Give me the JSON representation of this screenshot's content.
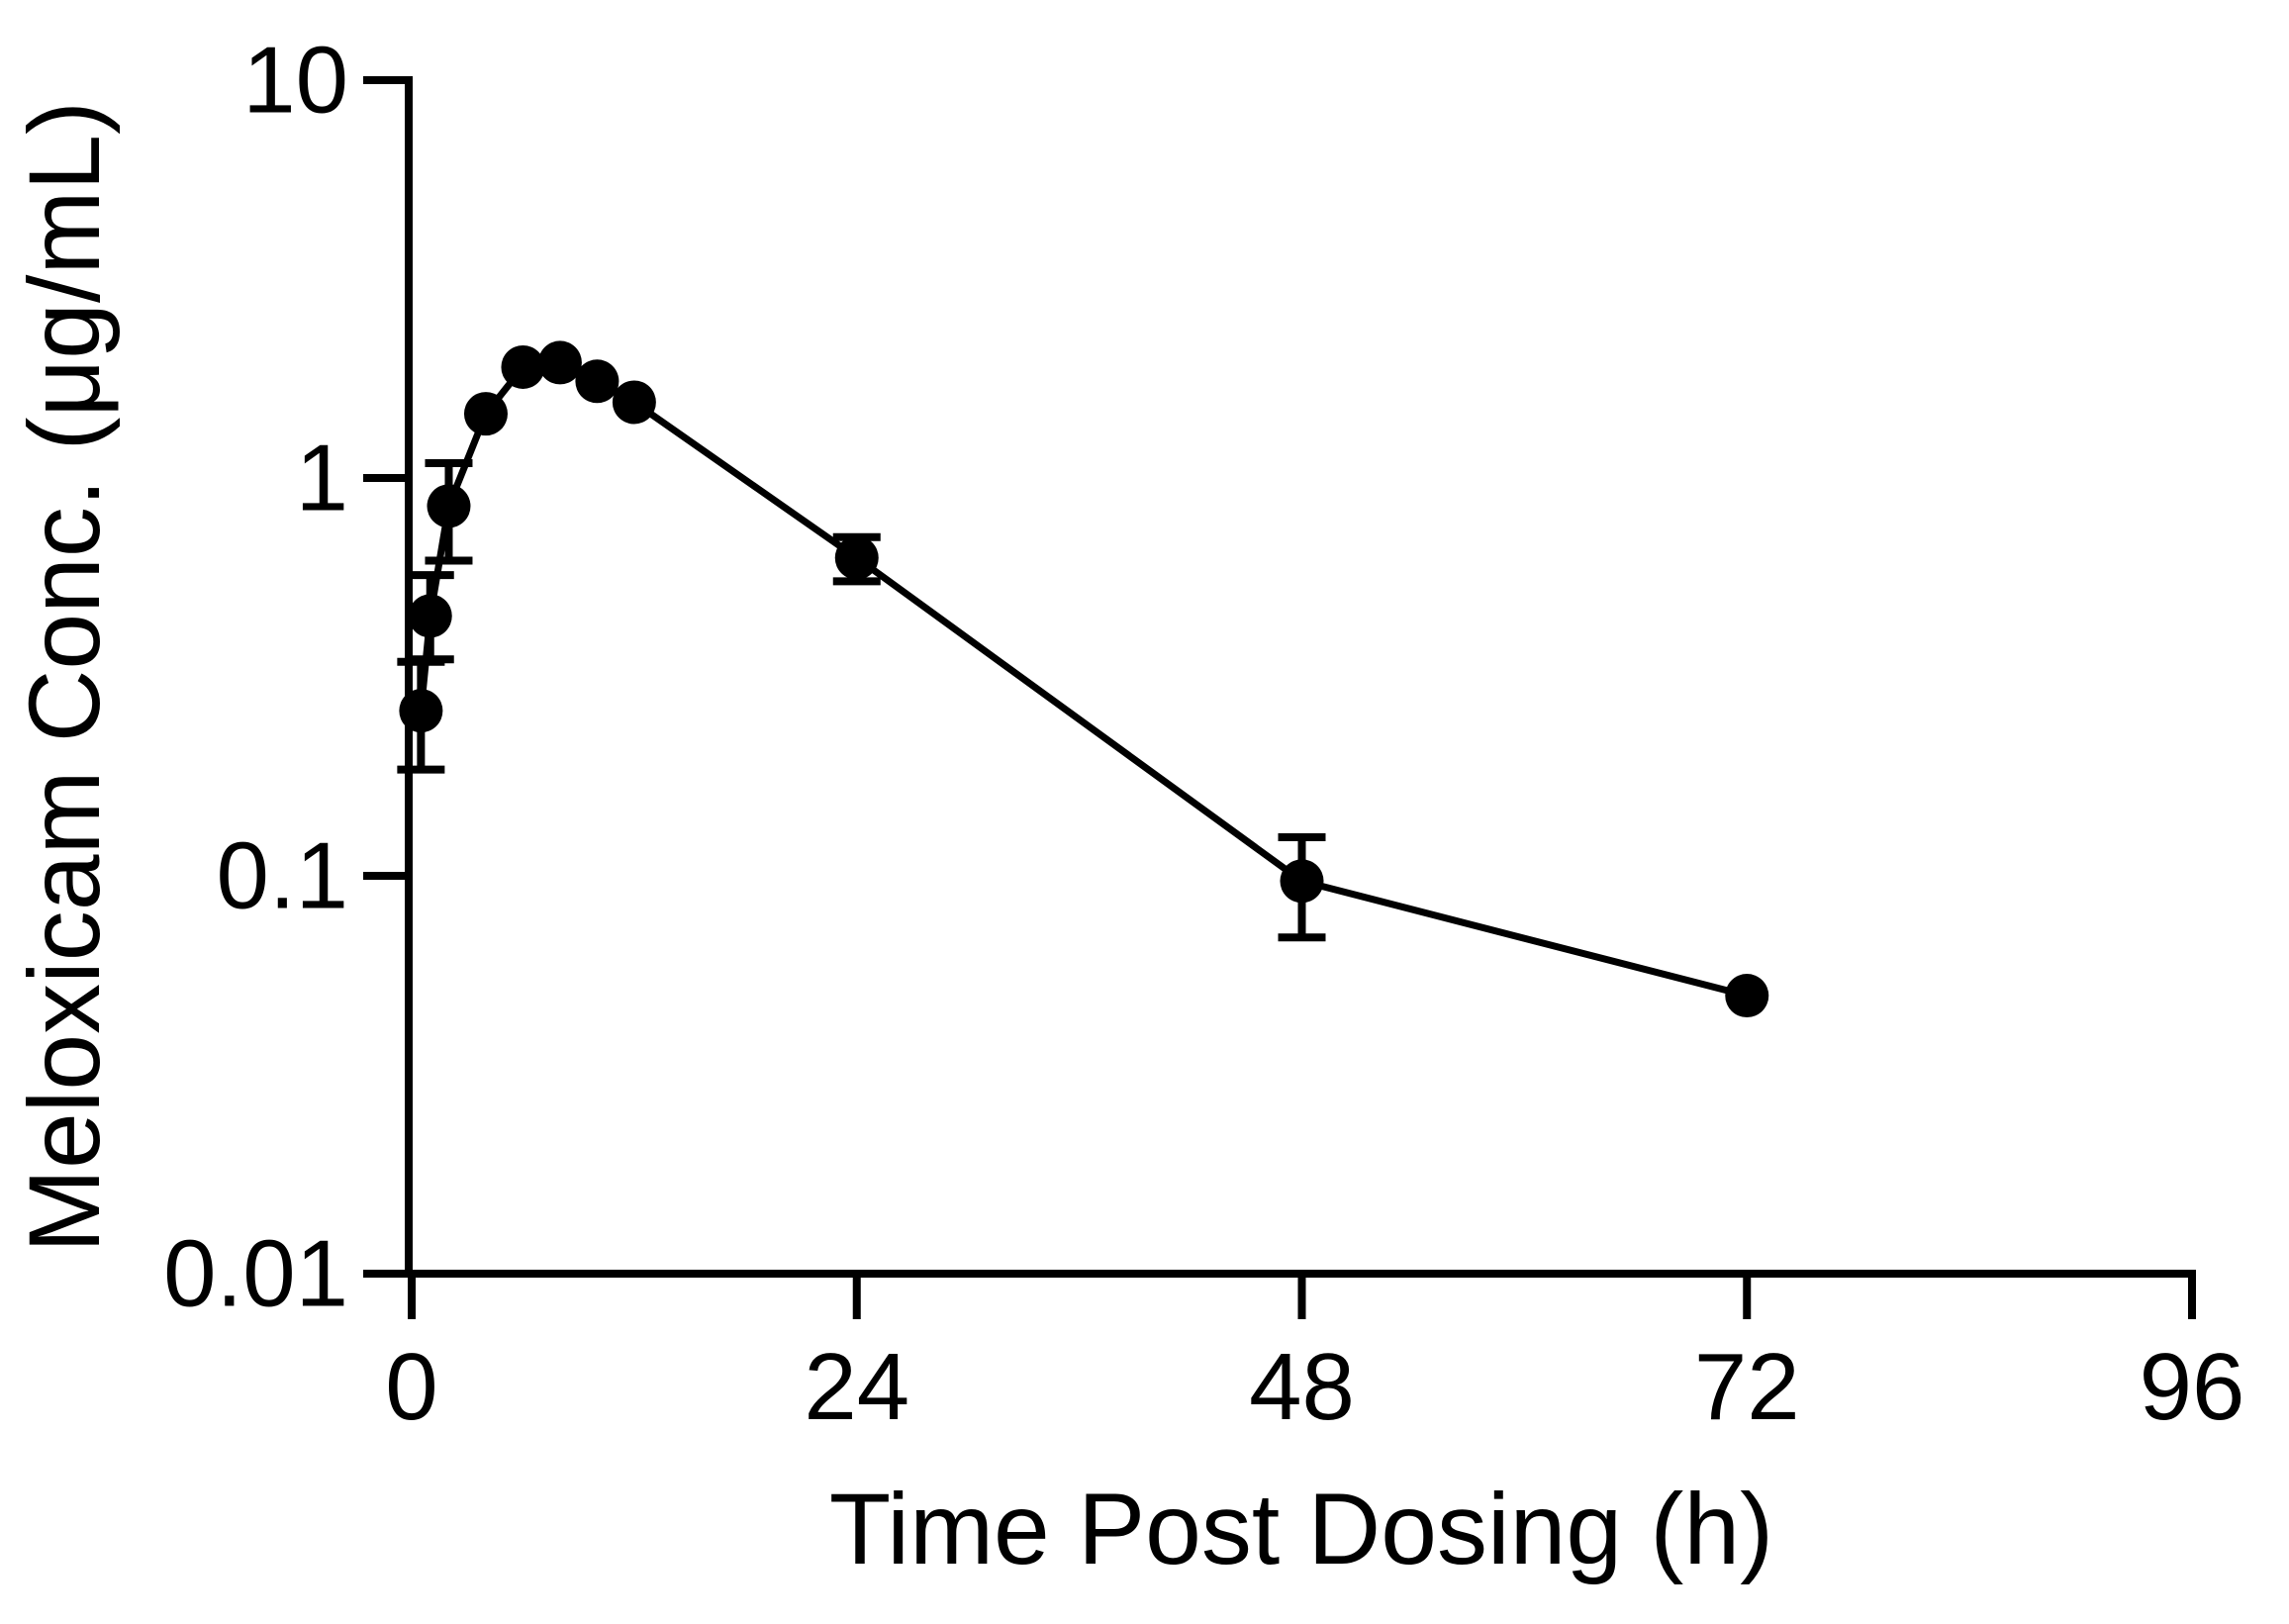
{
  "figure": {
    "ink": "#000000",
    "background": "#ffffff"
  },
  "chart_data": {
    "type": "line",
    "title": "",
    "xlabel": "Time Post Dosing (h)",
    "ylabel": "Meloxicam Conc. (μg/mL)",
    "x_ticks": [
      "0",
      "24",
      "48",
      "72",
      "96"
    ],
    "x_tick_values": [
      0,
      24,
      48,
      72,
      96
    ],
    "y_ticks": [
      "10",
      "1",
      "0.1",
      "0.01"
    ],
    "y_tick_values": [
      10,
      1,
      0.1,
      0.01
    ],
    "xlim": [
      0,
      96
    ],
    "ylim": [
      0.01,
      10
    ],
    "y_scale": "log10",
    "grid": false,
    "legend": false,
    "marker": "filled-circle",
    "has_error_bars": true,
    "series": [
      {
        "name": "meloxicam-concentration",
        "points": [
          {
            "t": 0.5,
            "conc": 0.26,
            "err_hi": 0.345,
            "err_lo": 0.185
          },
          {
            "t": 1,
            "conc": 0.45,
            "err_hi": 0.57,
            "err_lo": 0.35
          },
          {
            "t": 2,
            "conc": 0.85,
            "err_hi": 1.09,
            "err_lo": 0.62
          },
          {
            "t": 4,
            "conc": 1.45,
            "err_hi": null,
            "err_lo": null
          },
          {
            "t": 6,
            "conc": 1.9,
            "err_hi": null,
            "err_lo": null
          },
          {
            "t": 8,
            "conc": 1.95,
            "err_hi": null,
            "err_lo": null
          },
          {
            "t": 10,
            "conc": 1.75,
            "err_hi": null,
            "err_lo": null
          },
          {
            "t": 12,
            "conc": 1.55,
            "err_hi": null,
            "err_lo": null
          },
          {
            "t": 24,
            "conc": 0.63,
            "err_hi": 0.71,
            "err_lo": 0.55
          },
          {
            "t": 48,
            "conc": 0.097,
            "err_hi": 0.125,
            "err_lo": 0.07
          },
          {
            "t": 72,
            "conc": 0.05,
            "err_hi": null,
            "err_lo": null
          }
        ]
      }
    ]
  }
}
